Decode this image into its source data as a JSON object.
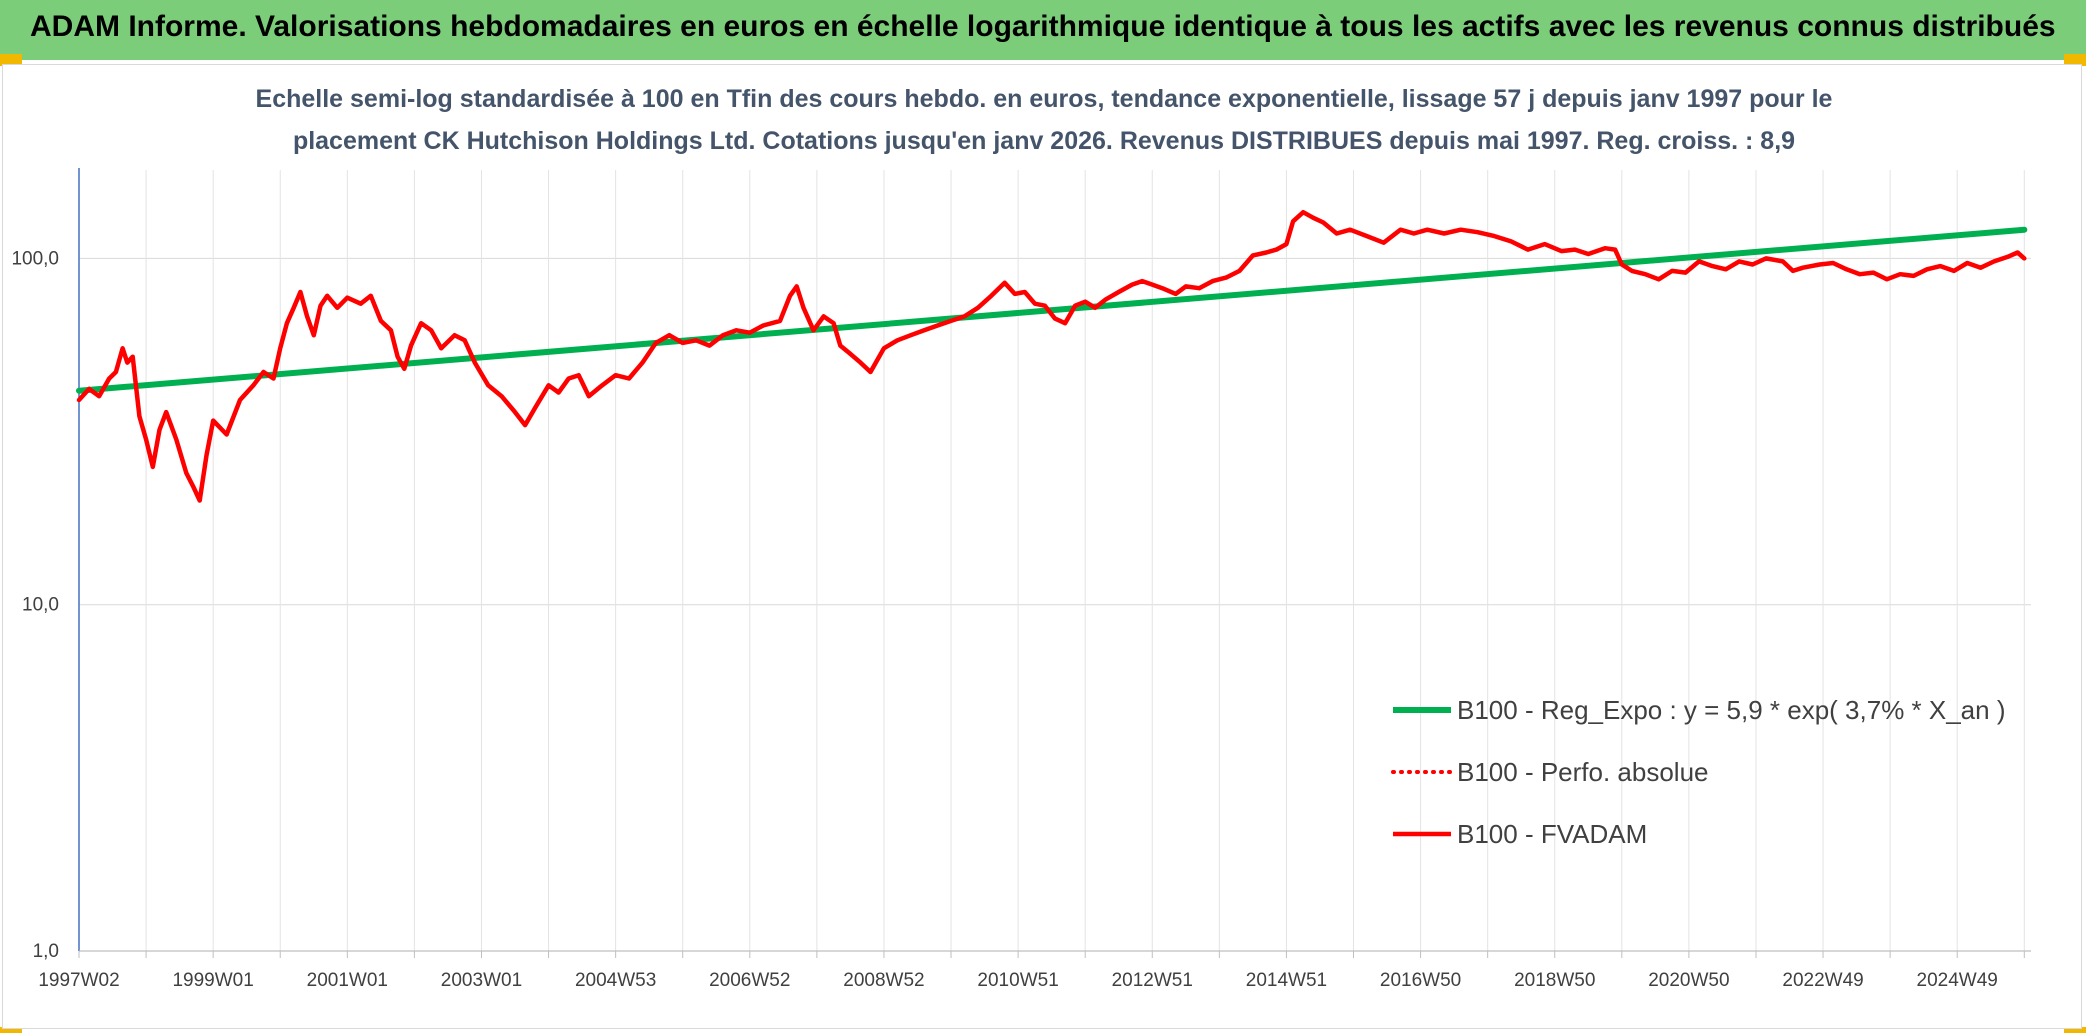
{
  "header": {
    "title": "ADAM Informe. Valorisations hebdomadaires en euros en échelle logarithmique identique à tous les actifs avec les revenus connus distribués"
  },
  "colors": {
    "header_bg": "#7ccd7a",
    "corner_accent": "#f2b800",
    "series_red": "#ff0000",
    "series_green": "#00b050",
    "title_text": "#44546a"
  },
  "chart_data": {
    "type": "line",
    "title": "",
    "subtitle_lines": [
      "Echelle semi-log standardisée à 100 en Tfin des cours hebdo. en euros, tendance exponentielle, lissage 57 j depuis janv 1997 pour le",
      "placement CK Hutchison Holdings Ltd. Cotations jusqu'en janv 2026. Revenus DISTRIBUES depuis mai 1997. Reg. croiss. : 8,9"
    ],
    "y_scale": "log",
    "ylim": [
      1,
      180
    ],
    "xlim": [
      1997.0,
      2026.1
    ],
    "grid": true,
    "legend_position": "bottom-right",
    "y_ticks": [
      {
        "value": 1,
        "label": "1,0"
      },
      {
        "value": 10,
        "label": "10,0"
      },
      {
        "value": 100,
        "label": "100,0"
      }
    ],
    "x_ticks": [
      {
        "value": 1997.0,
        "label": "1997W02"
      },
      {
        "value": 1999.0,
        "label": "1999W01"
      },
      {
        "value": 2001.0,
        "label": "2001W01"
      },
      {
        "value": 2003.0,
        "label": "2003W01"
      },
      {
        "value": 2005.0,
        "label": "2004W53"
      },
      {
        "value": 2007.0,
        "label": "2006W52"
      },
      {
        "value": 2009.0,
        "label": "2008W52"
      },
      {
        "value": 2011.0,
        "label": "2010W51"
      },
      {
        "value": 2013.0,
        "label": "2012W51"
      },
      {
        "value": 2015.0,
        "label": "2014W51"
      },
      {
        "value": 2017.0,
        "label": "2016W50"
      },
      {
        "value": 2019.0,
        "label": "2018W50"
      },
      {
        "value": 2021.0,
        "label": "2020W50"
      },
      {
        "value": 2023.0,
        "label": "2022W49"
      },
      {
        "value": 2025.0,
        "label": "2024W49"
      }
    ],
    "series": [
      {
        "name": "B100 - Reg_Expo : y = 5,9 * exp( 3,7% *  X_an )",
        "color": "#00b050",
        "style": "solid-thick",
        "points": [
          [
            1997.0,
            41.5
          ],
          [
            2026.0,
            121.0
          ]
        ]
      },
      {
        "name": "B100 - Perfo. absolue",
        "color": "#ff0000",
        "style": "dotted",
        "points": []
      },
      {
        "name": "B100 - FVADAM",
        "color": "#ff0000",
        "style": "solid",
        "points": [
          [
            1997.0,
            39
          ],
          [
            1997.15,
            42
          ],
          [
            1997.3,
            40
          ],
          [
            1997.45,
            45
          ],
          [
            1997.55,
            47
          ],
          [
            1997.65,
            55
          ],
          [
            1997.72,
            50
          ],
          [
            1997.8,
            52
          ],
          [
            1997.9,
            35
          ],
          [
            1998.0,
            30
          ],
          [
            1998.1,
            25
          ],
          [
            1998.2,
            32
          ],
          [
            1998.3,
            36
          ],
          [
            1998.45,
            30
          ],
          [
            1998.6,
            24
          ],
          [
            1998.7,
            22
          ],
          [
            1998.8,
            20
          ],
          [
            1998.9,
            27
          ],
          [
            1999.0,
            34
          ],
          [
            1999.2,
            31
          ],
          [
            1999.4,
            39
          ],
          [
            1999.6,
            43
          ],
          [
            1999.75,
            47
          ],
          [
            1999.9,
            45
          ],
          [
            2000.0,
            55
          ],
          [
            2000.1,
            65
          ],
          [
            2000.2,
            72
          ],
          [
            2000.3,
            80
          ],
          [
            2000.4,
            68
          ],
          [
            2000.5,
            60
          ],
          [
            2000.6,
            73
          ],
          [
            2000.7,
            78
          ],
          [
            2000.85,
            72
          ],
          [
            2001.0,
            77
          ],
          [
            2001.2,
            74
          ],
          [
            2001.35,
            78
          ],
          [
            2001.5,
            66
          ],
          [
            2001.65,
            62
          ],
          [
            2001.75,
            52
          ],
          [
            2001.85,
            48
          ],
          [
            2001.95,
            56
          ],
          [
            2002.1,
            65
          ],
          [
            2002.25,
            62
          ],
          [
            2002.4,
            55
          ],
          [
            2002.6,
            60
          ],
          [
            2002.75,
            58
          ],
          [
            2002.9,
            50
          ],
          [
            2003.1,
            43
          ],
          [
            2003.3,
            40
          ],
          [
            2003.5,
            36
          ],
          [
            2003.65,
            33
          ],
          [
            2003.8,
            37
          ],
          [
            2004.0,
            43
          ],
          [
            2004.15,
            41
          ],
          [
            2004.3,
            45
          ],
          [
            2004.45,
            46
          ],
          [
            2004.6,
            40
          ],
          [
            2004.8,
            43
          ],
          [
            2005.0,
            46
          ],
          [
            2005.2,
            45
          ],
          [
            2005.4,
            50
          ],
          [
            2005.6,
            57
          ],
          [
            2005.8,
            60
          ],
          [
            2006.0,
            57
          ],
          [
            2006.2,
            58
          ],
          [
            2006.4,
            56
          ],
          [
            2006.6,
            60
          ],
          [
            2006.8,
            62
          ],
          [
            2007.0,
            61
          ],
          [
            2007.2,
            64
          ],
          [
            2007.45,
            66
          ],
          [
            2007.6,
            78
          ],
          [
            2007.7,
            83
          ],
          [
            2007.8,
            72
          ],
          [
            2007.95,
            62
          ],
          [
            2008.1,
            68
          ],
          [
            2008.25,
            65
          ],
          [
            2008.35,
            56
          ],
          [
            2008.5,
            53
          ],
          [
            2008.65,
            50
          ],
          [
            2008.8,
            47
          ],
          [
            2009.0,
            55
          ],
          [
            2009.2,
            58
          ],
          [
            2009.4,
            60
          ],
          [
            2009.6,
            62
          ],
          [
            2009.8,
            64
          ],
          [
            2010.0,
            66
          ],
          [
            2010.2,
            68
          ],
          [
            2010.4,
            72
          ],
          [
            2010.6,
            78
          ],
          [
            2010.8,
            85
          ],
          [
            2010.95,
            79
          ],
          [
            2011.1,
            80
          ],
          [
            2011.25,
            74
          ],
          [
            2011.4,
            73
          ],
          [
            2011.55,
            67
          ],
          [
            2011.7,
            65
          ],
          [
            2011.85,
            73
          ],
          [
            2012.0,
            75
          ],
          [
            2012.15,
            72
          ],
          [
            2012.3,
            76
          ],
          [
            2012.5,
            80
          ],
          [
            2012.7,
            84
          ],
          [
            2012.85,
            86
          ],
          [
            2013.0,
            84
          ],
          [
            2013.15,
            82
          ],
          [
            2013.35,
            79
          ],
          [
            2013.5,
            83
          ],
          [
            2013.7,
            82
          ],
          [
            2013.9,
            86
          ],
          [
            2014.1,
            88
          ],
          [
            2014.3,
            92
          ],
          [
            2014.5,
            102
          ],
          [
            2014.7,
            104
          ],
          [
            2014.85,
            106
          ],
          [
            2015.0,
            110
          ],
          [
            2015.1,
            128
          ],
          [
            2015.25,
            136
          ],
          [
            2015.4,
            131
          ],
          [
            2015.55,
            127
          ],
          [
            2015.75,
            118
          ],
          [
            2015.95,
            121
          ],
          [
            2016.2,
            116
          ],
          [
            2016.45,
            111
          ],
          [
            2016.7,
            121
          ],
          [
            2016.9,
            118
          ],
          [
            2017.1,
            121
          ],
          [
            2017.35,
            118
          ],
          [
            2017.6,
            121
          ],
          [
            2017.85,
            119
          ],
          [
            2018.1,
            116
          ],
          [
            2018.35,
            112
          ],
          [
            2018.6,
            106
          ],
          [
            2018.85,
            110
          ],
          [
            2019.1,
            105
          ],
          [
            2019.3,
            106
          ],
          [
            2019.5,
            103
          ],
          [
            2019.75,
            107
          ],
          [
            2019.9,
            106
          ],
          [
            2020.0,
            96
          ],
          [
            2020.15,
            92
          ],
          [
            2020.35,
            90
          ],
          [
            2020.55,
            87
          ],
          [
            2020.75,
            92
          ],
          [
            2020.95,
            91
          ],
          [
            2021.15,
            98
          ],
          [
            2021.35,
            95
          ],
          [
            2021.55,
            93
          ],
          [
            2021.75,
            98
          ],
          [
            2021.95,
            96
          ],
          [
            2022.15,
            100
          ],
          [
            2022.4,
            98
          ],
          [
            2022.55,
            92
          ],
          [
            2022.7,
            94
          ],
          [
            2022.95,
            96
          ],
          [
            2023.15,
            97
          ],
          [
            2023.35,
            93
          ],
          [
            2023.55,
            90
          ],
          [
            2023.75,
            91
          ],
          [
            2023.95,
            87
          ],
          [
            2024.15,
            90
          ],
          [
            2024.35,
            89
          ],
          [
            2024.55,
            93
          ],
          [
            2024.75,
            95
          ],
          [
            2024.95,
            92
          ],
          [
            2025.15,
            97
          ],
          [
            2025.35,
            94
          ],
          [
            2025.55,
            98
          ],
          [
            2025.75,
            101
          ],
          [
            2025.9,
            104
          ],
          [
            2026.0,
            100
          ]
        ]
      }
    ]
  }
}
